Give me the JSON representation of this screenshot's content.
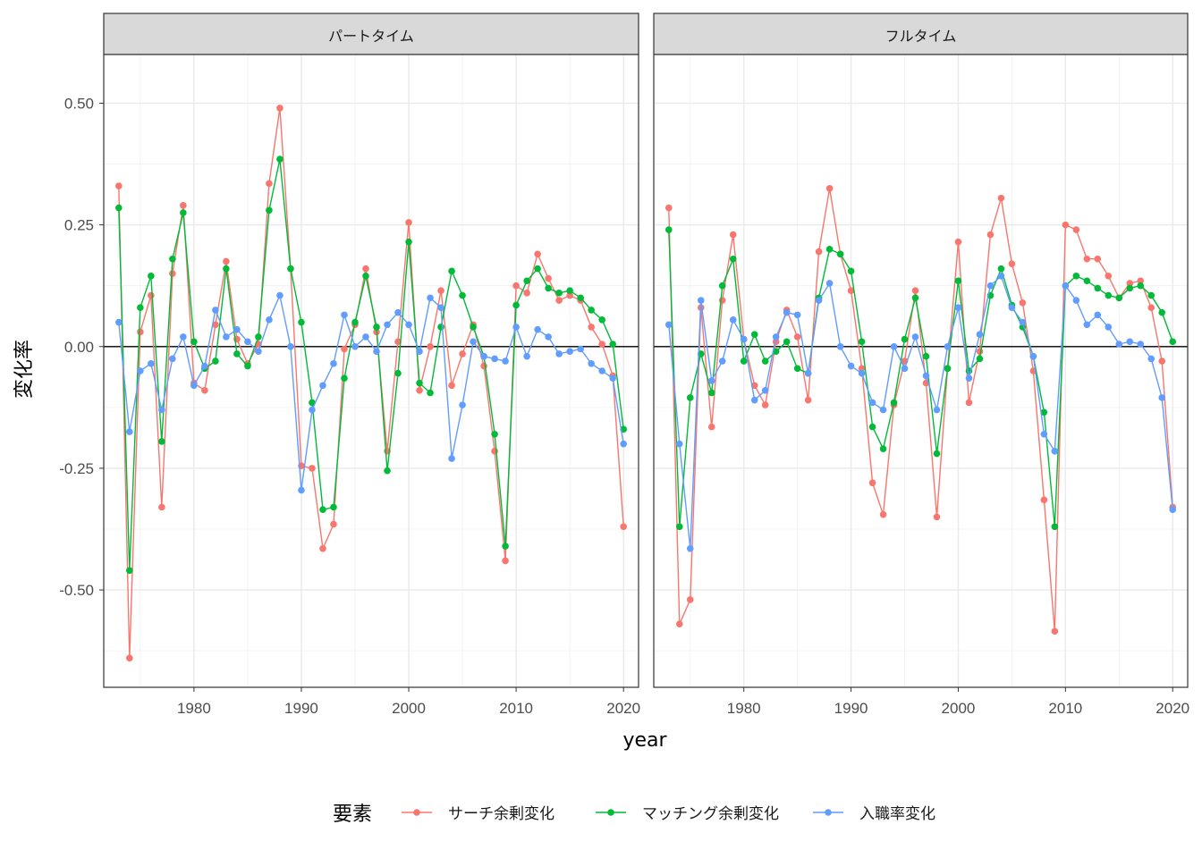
{
  "chart_data": {
    "type": "line",
    "xlabel": "year",
    "ylabel": "変化率",
    "xlim": [
      1971.6,
      2021.4
    ],
    "ylim": [
      -0.7,
      0.6
    ],
    "xticks": [
      1980,
      1990,
      2000,
      2010,
      2020
    ],
    "yticks": [
      -0.5,
      -0.25,
      0,
      0.25,
      0.5
    ],
    "ytick_labels": [
      "-0.50",
      "-0.25",
      "0.00",
      "0.25",
      "0.50"
    ],
    "reference_line_y": 0,
    "grid": true,
    "legend": {
      "title": "要素",
      "position": "bottom",
      "entries": [
        "サーチ余剰変化",
        "マッチング余剰変化",
        "入職率変化"
      ]
    },
    "colors": {
      "サーチ余剰変化": "#F8766D",
      "マッチング余剰変化": "#00BA38",
      "入職率変化": "#619CFF"
    },
    "x": [
      1973,
      1974,
      1975,
      1976,
      1977,
      1978,
      1979,
      1980,
      1981,
      1982,
      1983,
      1984,
      1985,
      1986,
      1987,
      1988,
      1989,
      1990,
      1991,
      1992,
      1993,
      1994,
      1995,
      1996,
      1997,
      1998,
      1999,
      2000,
      2001,
      2002,
      2003,
      2004,
      2005,
      2006,
      2007,
      2008,
      2009,
      2010,
      2011,
      2012,
      2013,
      2014,
      2015,
      2016,
      2017,
      2018,
      2019,
      2020
    ],
    "panels": [
      {
        "title": "パートタイム",
        "series": [
          {
            "name": "サーチ余剰変化",
            "values": [
              0.33,
              -0.64,
              0.03,
              0.105,
              -0.33,
              0.15,
              0.29,
              -0.075,
              -0.09,
              0.045,
              0.175,
              0.015,
              -0.035,
              0.005,
              0.335,
              0.49,
              0.16,
              -0.245,
              -0.25,
              -0.415,
              -0.365,
              -0.005,
              0.045,
              0.16,
              0.03,
              -0.215,
              0.01,
              0.255,
              -0.09,
              0.0,
              0.115,
              -0.08,
              -0.015,
              0.045,
              -0.04,
              -0.215,
              -0.44,
              0.125,
              0.11,
              0.19,
              0.14,
              0.095,
              0.105,
              0.095,
              0.04,
              0.005,
              -0.06,
              -0.37
            ]
          },
          {
            "name": "マッチング余剰変化",
            "values": [
              0.285,
              -0.46,
              0.08,
              0.145,
              -0.195,
              0.18,
              0.275,
              0.01,
              -0.045,
              -0.03,
              0.16,
              -0.015,
              -0.04,
              0.02,
              0.28,
              0.385,
              0.16,
              0.05,
              -0.115,
              -0.335,
              -0.33,
              -0.065,
              0.05,
              0.145,
              0.04,
              -0.255,
              -0.055,
              0.215,
              -0.075,
              -0.095,
              0.04,
              0.155,
              0.105,
              0.04,
              -0.02,
              -0.18,
              -0.41,
              0.085,
              0.135,
              0.16,
              0.12,
              0.11,
              0.115,
              0.1,
              0.075,
              0.055,
              0.005,
              -0.17
            ]
          },
          {
            "name": "入職率変化",
            "values": [
              0.05,
              -0.175,
              -0.05,
              -0.035,
              -0.13,
              -0.025,
              0.02,
              -0.08,
              -0.04,
              0.075,
              0.02,
              0.035,
              0.01,
              -0.01,
              0.055,
              0.105,
              0.0,
              -0.295,
              -0.13,
              -0.08,
              -0.035,
              0.065,
              0.0,
              0.02,
              -0.01,
              0.045,
              0.07,
              0.045,
              -0.01,
              0.1,
              0.08,
              -0.23,
              -0.12,
              0.01,
              -0.02,
              -0.025,
              -0.03,
              0.04,
              -0.02,
              0.035,
              0.02,
              -0.015,
              -0.01,
              -0.005,
              -0.035,
              -0.05,
              -0.065,
              -0.2
            ]
          }
        ]
      },
      {
        "title": "フルタイム",
        "series": [
          {
            "name": "サーチ余剰変化",
            "values": [
              0.285,
              -0.57,
              -0.52,
              0.08,
              -0.165,
              0.095,
              0.23,
              0.015,
              -0.08,
              -0.12,
              0.01,
              0.075,
              0.02,
              -0.11,
              0.195,
              0.325,
              0.19,
              0.115,
              -0.045,
              -0.28,
              -0.345,
              -0.12,
              -0.03,
              0.115,
              -0.075,
              -0.35,
              -0.045,
              0.215,
              -0.115,
              -0.01,
              0.23,
              0.305,
              0.17,
              0.09,
              -0.05,
              -0.315,
              -0.585,
              0.25,
              0.24,
              0.18,
              0.18,
              0.145,
              0.1,
              0.13,
              0.135,
              0.08,
              -0.03,
              -0.33
            ]
          },
          {
            "name": "マッチング余剰変化",
            "values": [
              0.24,
              -0.37,
              -0.105,
              -0.015,
              -0.095,
              0.125,
              0.18,
              -0.03,
              0.025,
              -0.03,
              -0.01,
              0.01,
              -0.045,
              -0.055,
              0.1,
              0.2,
              0.19,
              0.155,
              0.01,
              -0.165,
              -0.21,
              -0.115,
              0.015,
              0.1,
              -0.02,
              -0.22,
              -0.045,
              0.135,
              -0.05,
              -0.025,
              0.105,
              0.16,
              0.085,
              0.04,
              -0.02,
              -0.135,
              -0.37,
              0.125,
              0.145,
              0.135,
              0.12,
              0.105,
              0.1,
              0.12,
              0.125,
              0.105,
              0.07,
              0.01
            ]
          },
          {
            "name": "入職率変化",
            "values": [
              0.045,
              -0.2,
              -0.415,
              0.095,
              -0.07,
              -0.03,
              0.055,
              0.015,
              -0.11,
              -0.09,
              0.02,
              0.07,
              0.065,
              -0.055,
              0.095,
              0.13,
              0.0,
              -0.04,
              -0.055,
              -0.115,
              -0.13,
              0.0,
              -0.045,
              0.02,
              -0.06,
              -0.13,
              0.0,
              0.08,
              -0.065,
              0.025,
              0.125,
              0.145,
              0.08,
              0.05,
              -0.02,
              -0.18,
              -0.215,
              0.125,
              0.095,
              0.045,
              0.065,
              0.04,
              0.005,
              0.01,
              0.005,
              -0.025,
              -0.105,
              -0.335
            ]
          }
        ]
      }
    ]
  }
}
